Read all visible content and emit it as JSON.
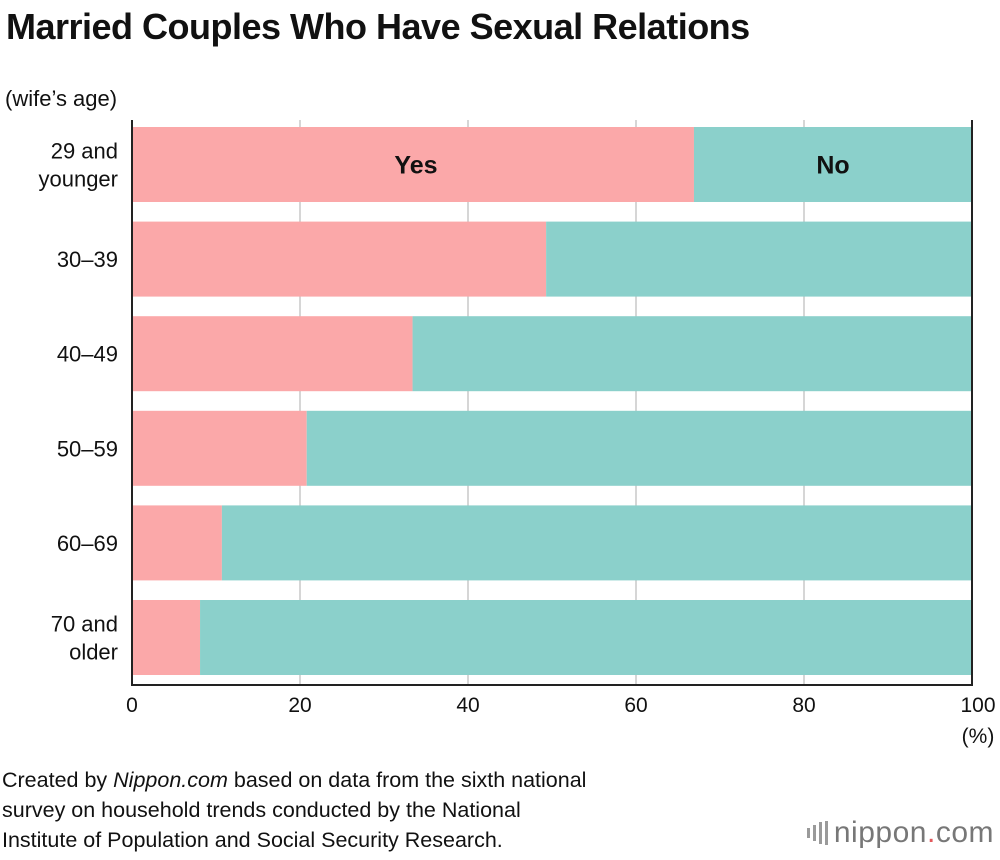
{
  "title": "Married Couples Who Have Sexual Relations",
  "y_caption": "(wife’s age)",
  "colors": {
    "yes": "#fba8a9",
    "no": "#8bd0cb",
    "grid": "#c8c8c8",
    "axis": "#222222"
  },
  "chart_data": {
    "type": "bar",
    "orientation": "horizontal",
    "stacked": true,
    "categories": [
      [
        "29 and",
        "younger"
      ],
      [
        "30–39"
      ],
      [
        "40–49"
      ],
      [
        "50–59"
      ],
      [
        "60–69"
      ],
      [
        "70 and",
        "older"
      ]
    ],
    "series": [
      {
        "name": "Yes",
        "values": [
          66.9,
          49.3,
          33.4,
          20.8,
          10.7,
          8.1
        ]
      },
      {
        "name": "No",
        "values": [
          33.1,
          50.7,
          66.6,
          79.2,
          89.3,
          91.9
        ]
      }
    ],
    "x_ticks": [
      "0",
      "20",
      "40",
      "60",
      "80",
      "100"
    ],
    "xlim": [
      0,
      100
    ],
    "x_unit": "(%)",
    "grid": true,
    "legend": "inline labels on first bar"
  },
  "footer": {
    "prefix": "Created by ",
    "source": "Nippon.com",
    "line1_rest": " based on data from the sixth national",
    "line2": "survey on household trends conducted by the National",
    "line3": "Institute of Population and Social Security Research."
  },
  "logo": {
    "name": "nippon",
    "dot": ".",
    "suffix": "com"
  }
}
